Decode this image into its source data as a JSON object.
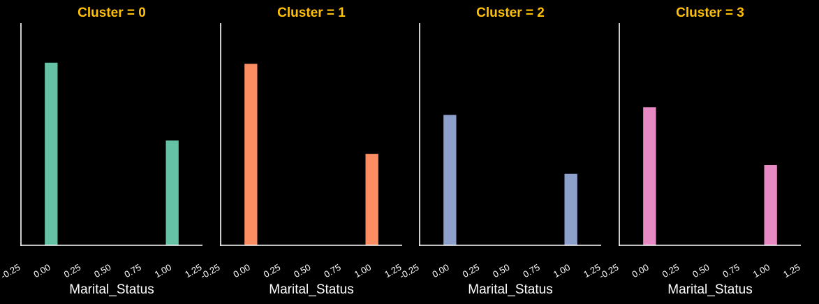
{
  "style": {
    "background": "#000000",
    "title_color": "#ffc107",
    "axis_color": "#ffffff",
    "text_color": "#ffffff"
  },
  "chart_data": [
    {
      "type": "bar",
      "title": "Cluster = 0",
      "xlabel": "Marital_Status",
      "ylabel": "",
      "x": [
        0,
        1
      ],
      "values": [
        0.82,
        0.47
      ],
      "bar_width": 0.1,
      "color": "#66c2a5",
      "xlim": [
        -0.25,
        1.25
      ],
      "ylim": [
        0,
        1
      ],
      "xticks": [
        "-0.25",
        "0.00",
        "0.25",
        "0.50",
        "0.75",
        "1.00",
        "1.25"
      ],
      "grid": false,
      "show_yaxis_ticks": false
    },
    {
      "type": "bar",
      "title": "Cluster = 1",
      "xlabel": "Marital_Status",
      "ylabel": "",
      "x": [
        0,
        1
      ],
      "values": [
        0.815,
        0.41
      ],
      "bar_width": 0.1,
      "color": "#fc8d62",
      "xlim": [
        -0.25,
        1.25
      ],
      "ylim": [
        0,
        1
      ],
      "xticks": [
        "-0.25",
        "0.00",
        "0.25",
        "0.50",
        "0.75",
        "1.00",
        "1.25"
      ],
      "grid": false,
      "show_yaxis_ticks": false
    },
    {
      "type": "bar",
      "title": "Cluster = 2",
      "xlabel": "Marital_Status",
      "ylabel": "",
      "x": [
        0,
        1
      ],
      "values": [
        0.585,
        0.32
      ],
      "bar_width": 0.1,
      "color": "#8da0cb",
      "xlim": [
        -0.25,
        1.25
      ],
      "ylim": [
        0,
        1
      ],
      "xticks": [
        "-0.25",
        "0.00",
        "0.25",
        "0.50",
        "0.75",
        "1.00",
        "1.25"
      ],
      "grid": false,
      "show_yaxis_ticks": false
    },
    {
      "type": "bar",
      "title": "Cluster = 3",
      "xlabel": "Marital_Status",
      "ylabel": "",
      "x": [
        0,
        1
      ],
      "values": [
        0.62,
        0.36
      ],
      "bar_width": 0.1,
      "color": "#e78ac3",
      "xlim": [
        -0.25,
        1.25
      ],
      "ylim": [
        0,
        1
      ],
      "xticks": [
        "-0.25",
        "0.00",
        "0.25",
        "0.50",
        "0.75",
        "1.00",
        "1.25"
      ],
      "grid": false,
      "show_yaxis_ticks": false
    }
  ]
}
